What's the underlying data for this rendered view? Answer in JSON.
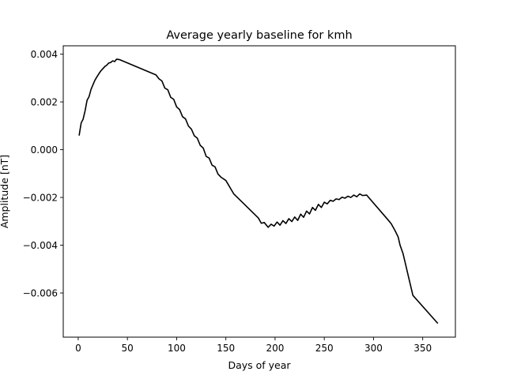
{
  "chart_data": {
    "type": "line",
    "title": "Average yearly baseline for kmh",
    "xlabel": "Days of year",
    "ylabel": "Amplitude [nT]",
    "xlim": [
      -15.2,
      383.2
    ],
    "ylim": [
      -0.00785,
      0.00435
    ],
    "xticks": [
      0,
      50,
      100,
      150,
      200,
      250,
      300,
      350
    ],
    "xtick_labels": [
      "0",
      "50",
      "100",
      "150",
      "200",
      "250",
      "300",
      "350"
    ],
    "yticks": [
      0.004,
      0.002,
      0.0,
      -0.002,
      -0.004,
      -0.006
    ],
    "ytick_labels": [
      "0.004",
      "0.002",
      "0.000",
      "−0.002",
      "−0.004",
      "−0.006"
    ],
    "grid": false,
    "legend": "none",
    "series": [
      {
        "color": "#000000",
        "x": [
          1,
          3,
          5,
          7,
          9,
          11,
          13,
          15,
          17,
          19,
          21,
          23,
          25,
          27,
          29,
          31,
          33,
          35,
          37,
          39,
          42,
          79,
          82,
          85,
          88,
          91,
          94,
          97,
          100,
          103,
          106,
          109,
          112,
          115,
          118,
          121,
          124,
          127,
          130,
          133,
          136,
          139,
          142,
          145,
          150,
          158,
          183,
          186,
          189,
          193,
          196,
          199,
          202,
          205,
          208,
          211,
          214,
          217,
          220,
          223,
          226,
          229,
          232,
          235,
          238,
          241,
          244,
          247,
          250,
          253,
          256,
          259,
          262,
          265,
          268,
          271,
          274,
          277,
          280,
          283,
          286,
          289,
          293,
          315,
          318,
          320,
          322,
          325,
          327,
          330,
          332,
          334,
          336,
          338,
          340,
          365
        ],
        "y": [
          0.00061,
          0.00112,
          0.00128,
          0.00163,
          0.00207,
          0.00222,
          0.00252,
          0.00272,
          0.00291,
          0.00305,
          0.00318,
          0.0033,
          0.00339,
          0.00348,
          0.00354,
          0.00363,
          0.00365,
          0.00372,
          0.00369,
          0.00379,
          0.00377,
          0.00313,
          0.00297,
          0.00288,
          0.00258,
          0.00251,
          0.00219,
          0.00211,
          0.00179,
          0.00168,
          0.00138,
          0.00129,
          0.00099,
          0.00086,
          0.00058,
          0.00048,
          0.00018,
          7e-05,
          -0.00028,
          -0.00035,
          -0.00065,
          -0.00072,
          -0.00102,
          -0.00115,
          -0.00129,
          -0.00185,
          -0.00286,
          -0.00308,
          -0.00305,
          -0.00325,
          -0.00312,
          -0.0032,
          -0.00303,
          -0.00316,
          -0.00297,
          -0.00309,
          -0.00289,
          -0.00301,
          -0.00282,
          -0.00296,
          -0.0027,
          -0.00283,
          -0.00257,
          -0.00269,
          -0.00242,
          -0.00254,
          -0.00229,
          -0.00242,
          -0.0022,
          -0.00227,
          -0.00212,
          -0.00216,
          -0.00206,
          -0.00209,
          -0.00199,
          -0.00203,
          -0.00195,
          -0.002,
          -0.0019,
          -0.00197,
          -0.00185,
          -0.00192,
          -0.0019,
          -0.00295,
          -0.0031,
          -0.00325,
          -0.0034,
          -0.00365,
          -0.004,
          -0.00435,
          -0.0047,
          -0.00505,
          -0.0054,
          -0.00575,
          -0.0061,
          -0.00726
        ]
      }
    ]
  }
}
